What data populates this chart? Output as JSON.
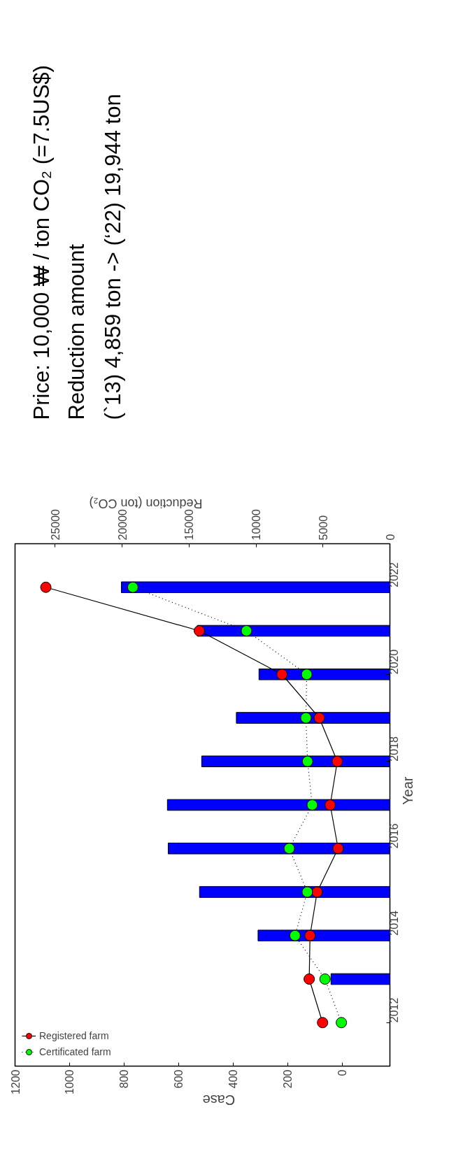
{
  "chart_data": {
    "type": "bar",
    "orientation": "horizontal",
    "categories": [
      "2022",
      null,
      "2020",
      null,
      "2018",
      null,
      "2016",
      null,
      "2014",
      null,
      "2012"
    ],
    "series": [
      {
        "axis": "x2",
        "color": "#0000ff",
        "values": [
          20060,
          14380,
          9780,
          11470,
          14060,
          16620,
          16560,
          14220,
          9850,
          4400,
          null
        ]
      },
      {
        "type": "line",
        "name": "Registered farm",
        "color": "#ff0000",
        "line_style": "solid",
        "values": [
          1087,
          524,
          221,
          84,
          18,
          44,
          15,
          92,
          118,
          121,
          72
        ]
      },
      {
        "type": "line",
        "name": "Certificated farm",
        "color": "#00ff00",
        "line_style": "dotted",
        "values": [
          768,
          351,
          130,
          133,
          127,
          110,
          194,
          128,
          173,
          63,
          3
        ]
      }
    ],
    "xlim": [
      1200,
      -175
    ],
    "xticks": [
      0,
      200,
      400,
      600,
      800,
      1000,
      1200
    ],
    "x2lim": [
      28000,
      0
    ],
    "x2ticks": [
      0,
      5000,
      10000,
      15000,
      20000,
      25000
    ],
    "xlabel": "Case",
    "x2label": "Reduction (ton CO₂)",
    "ylabel": "Year",
    "marker": "circle",
    "legend": "bottom left",
    "grid": false,
    "annotations": [
      "Price: 10,000 ₩ / ton CO₂ (=7.5US$)",
      "Reduction amount",
      "(`13) 4,859 ton  -> (‘22) 19,944 ton"
    ]
  }
}
